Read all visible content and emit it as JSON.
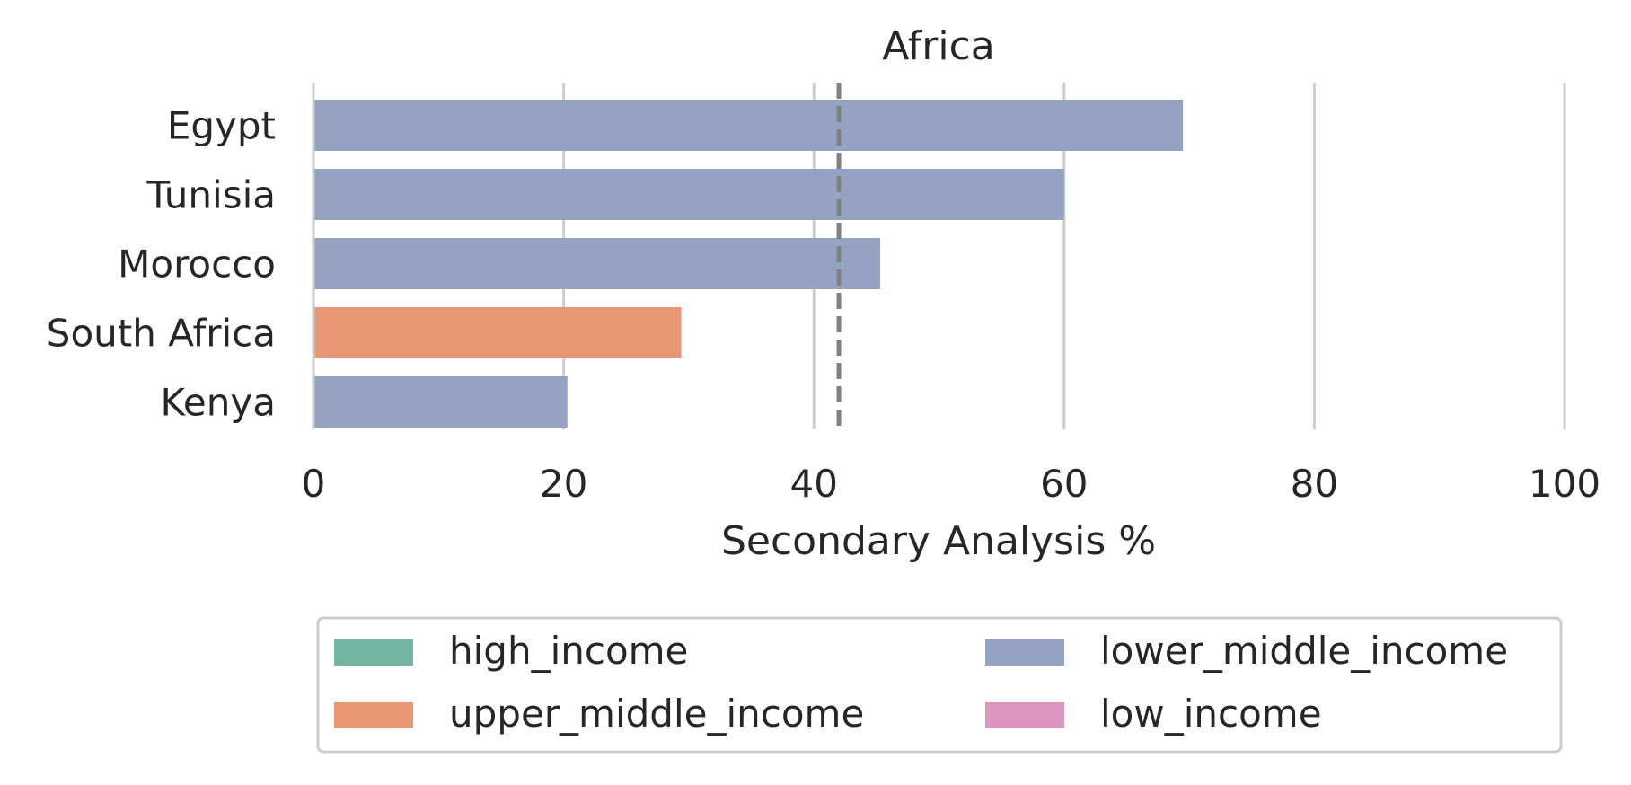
{
  "chart_data": {
    "type": "bar",
    "orientation": "horizontal",
    "title": "Africa",
    "xlabel": "Secondary Analysis %",
    "ylabel": "",
    "xlim": [
      0,
      100
    ],
    "xticks": [
      0,
      20,
      40,
      60,
      80,
      100
    ],
    "grid": "vertical",
    "categories": [
      "Egypt",
      "Tunisia",
      "Morocco",
      "South Africa",
      "Kenya"
    ],
    "values": [
      69.5,
      60,
      45.3,
      29.4,
      20.3
    ],
    "groups": [
      "lower_middle_income",
      "lower_middle_income",
      "lower_middle_income",
      "upper_middle_income",
      "lower_middle_income"
    ],
    "reference_line": {
      "value": 42,
      "style": "dashed",
      "color": "#808080"
    },
    "legend": {
      "placement": "bottom",
      "columns": 2,
      "entries": [
        {
          "key": "high_income",
          "label": "high_income",
          "color": "#72b6a1"
        },
        {
          "key": "upper_middle_income",
          "label": "upper_middle_income",
          "color": "#e99675"
        },
        {
          "key": "lower_middle_income",
          "label": "lower_middle_income",
          "color": "#95a3c3"
        },
        {
          "key": "low_income",
          "label": "low_income",
          "color": "#db96c0"
        }
      ]
    }
  }
}
